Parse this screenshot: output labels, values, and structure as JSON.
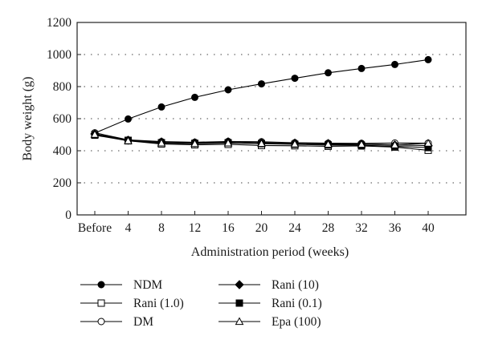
{
  "chart_data": {
    "type": "line",
    "categories": [
      "Before",
      "4",
      "8",
      "12",
      "16",
      "20",
      "24",
      "28",
      "32",
      "36",
      "40"
    ],
    "xlabel": "Administration period (weeks)",
    "ylabel": "Body weight (g)",
    "ylim": [
      0,
      1200
    ],
    "yticks": [
      "0",
      "200",
      "400",
      "600",
      "800",
      "1000",
      "1200"
    ],
    "grid": "horizontal dotted",
    "legend_position": "bottom",
    "series": [
      {
        "name": "NDM",
        "marker": "circle-filled",
        "values": [
          510,
          598,
          673,
          733,
          780,
          817,
          852,
          886,
          913,
          938,
          968
        ]
      },
      {
        "name": "Rani (1.0)",
        "marker": "square-open",
        "values": [
          497,
          462,
          442,
          437,
          440,
          433,
          431,
          428,
          430,
          423,
          403
        ]
      },
      {
        "name": "DM",
        "marker": "circle-open",
        "values": [
          512,
          468,
          457,
          453,
          458,
          456,
          450,
          447,
          446,
          448,
          447
        ]
      },
      {
        "name": "Rani (10)",
        "marker": "diamond-filled",
        "values": [
          505,
          466,
          455,
          450,
          456,
          450,
          448,
          445,
          442,
          436,
          432
        ]
      },
      {
        "name": "Rani (0.1)",
        "marker": "square-filled",
        "values": [
          500,
          465,
          450,
          446,
          450,
          444,
          440,
          436,
          434,
          428,
          420
        ]
      },
      {
        "name": "Epa (100)",
        "marker": "triangle-open",
        "values": [
          502,
          462,
          448,
          444,
          448,
          445,
          442,
          440,
          440,
          436,
          447
        ]
      }
    ]
  }
}
